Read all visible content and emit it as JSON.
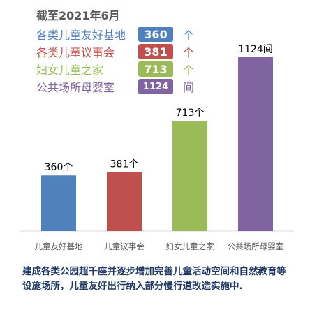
{
  "header": {
    "date": "截至2021年6月"
  },
  "legend": [
    {
      "name": "各类儿童友好基地",
      "value": "360",
      "unit": "个",
      "color": "#4f81bd"
    },
    {
      "name": "各类儿童议事会",
      "value": "381",
      "unit": "个",
      "color": "#c0504d"
    },
    {
      "name": "妇女儿童之家",
      "value": "713",
      "unit": "个",
      "color": "#9bbb59"
    },
    {
      "name": "公共场所母婴室",
      "value": "1124",
      "unit": "间",
      "color": "#8064a2"
    }
  ],
  "chart_data": {
    "type": "bar",
    "categories": [
      "儿童友好基地",
      "儿童议事会",
      "妇女儿童之家",
      "公共场所母婴室"
    ],
    "values": [
      360,
      381,
      713,
      1124
    ],
    "data_labels": [
      "360个",
      "381个",
      "713个",
      "1124间"
    ],
    "colors": [
      "#4f81bd",
      "#c0504d",
      "#9bbb59",
      "#8064a2"
    ],
    "grid": false,
    "legend_position": "top-left"
  },
  "footer": {
    "text": "建成各类公园超千座并逐步增加完善儿童活动空间和自然教育等设施场所，儿童友好出行纳入部分慢行道改造实施中."
  }
}
